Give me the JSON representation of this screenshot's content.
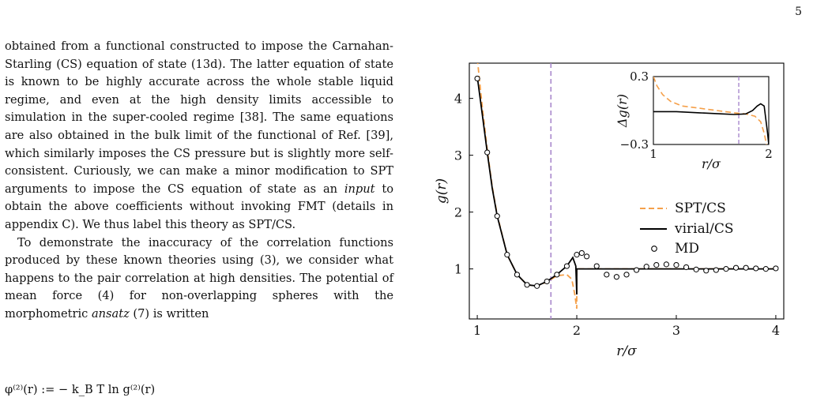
{
  "page_number": "5",
  "paragraph1": {
    "text_before_italic": "obtained from a functional constructed to impose the Carnahan-Starling (CS) equation of state (13d). The latter equation of state is known to be highly accurate across the whole stable liquid regime, and even at the high density limits accessible to simulation in the super-cooled regime [38]. The same equations are also obtained in the bulk limit of the functional of Ref. [39], which similarly imposes the CS pressure but is slightly more self-consistent. Curiously, we can make a minor modification to SPT arguments to impose the CS equation of state as an ",
    "italic": "input",
    "text_after_italic": " to obtain the above coefficients without invoking FMT (details in appendix C). We thus label this theory as SPT/CS."
  },
  "paragraph2": {
    "text_before_italic": "To demonstrate the inaccuracy of the correlation functions produced by these known theories using (3), we consider what happens to the pair correlation at high densities. The potential of mean force (4) for non-overlapping spheres with the morphometric ",
    "italic": "ansatz",
    "text_after_italic": " (7) is written"
  },
  "equation": "φ⁽²⁾(r) := − k_B T ln g⁽²⁾(r)",
  "chart_data": {
    "type": "line",
    "xlabel": "r/σ",
    "ylabel": "g(r)",
    "xlim": [
      0.92,
      4.08
    ],
    "ylim": [
      0.12,
      4.62
    ],
    "xticks": [
      "1",
      "2",
      "3",
      "4"
    ],
    "yticks": [
      "1",
      "2",
      "3",
      "4"
    ],
    "grid": false,
    "legend_position": "center-right",
    "vertical_line_x": 1.74,
    "series": [
      {
        "name": "SPT/CS",
        "style": "dashed",
        "color": "#f5a04a",
        "x": [
          1.0,
          1.05,
          1.1,
          1.15,
          1.2,
          1.3,
          1.4,
          1.5,
          1.6,
          1.7,
          1.8,
          1.9,
          1.95,
          1.98,
          2.0,
          2.0,
          2.1,
          2.5,
          3.0,
          3.5,
          4.0
        ],
        "y": [
          4.7,
          3.85,
          3.1,
          2.45,
          1.95,
          1.25,
          0.9,
          0.72,
          0.7,
          0.77,
          0.88,
          0.9,
          0.82,
          0.55,
          0.3,
          1.0,
          1.0,
          1.0,
          1.0,
          1.0,
          1.0
        ]
      },
      {
        "name": "virial/CS",
        "style": "solid",
        "color": "#000000",
        "x": [
          1.0,
          1.05,
          1.1,
          1.15,
          1.2,
          1.3,
          1.4,
          1.5,
          1.6,
          1.7,
          1.8,
          1.9,
          1.96,
          1.99,
          2.0,
          2.0,
          2.1,
          2.5,
          3.0,
          3.5,
          4.0
        ],
        "y": [
          4.38,
          3.72,
          3.05,
          2.42,
          1.93,
          1.25,
          0.9,
          0.72,
          0.7,
          0.78,
          0.9,
          1.05,
          1.2,
          1.05,
          0.55,
          1.0,
          1.0,
          1.0,
          1.0,
          1.0,
          1.0
        ]
      },
      {
        "name": "MD",
        "style": "markers",
        "color": "#000000",
        "x": [
          1.0,
          1.1,
          1.2,
          1.3,
          1.4,
          1.5,
          1.6,
          1.7,
          1.8,
          1.9,
          2.0,
          2.05,
          2.1,
          2.2,
          2.3,
          2.4,
          2.5,
          2.6,
          2.7,
          2.8,
          2.9,
          3.0,
          3.1,
          3.2,
          3.3,
          3.4,
          3.5,
          3.6,
          3.7,
          3.8,
          3.9,
          4.0
        ],
        "y": [
          4.35,
          3.05,
          1.93,
          1.25,
          0.9,
          0.72,
          0.7,
          0.78,
          0.9,
          1.05,
          1.25,
          1.28,
          1.22,
          1.05,
          0.9,
          0.86,
          0.9,
          0.98,
          1.04,
          1.07,
          1.08,
          1.07,
          1.03,
          0.99,
          0.97,
          0.98,
          1.0,
          1.02,
          1.02,
          1.01,
          1.0,
          1.01
        ]
      }
    ],
    "inset": {
      "xlabel": "r/σ",
      "ylabel": "Δg(r)",
      "xlim": [
        1.0,
        2.0
      ],
      "ylim": [
        -0.3,
        0.3
      ],
      "xticks": [
        "1",
        "2"
      ],
      "yticks": [
        "0.3",
        "−0.3"
      ],
      "vertical_line_x": 1.74,
      "series": [
        {
          "name": "SPT/CS",
          "style": "dashed",
          "color": "#f5a04a",
          "x": [
            1.0,
            1.03,
            1.08,
            1.15,
            1.25,
            1.4,
            1.55,
            1.7,
            1.8,
            1.88,
            1.93,
            1.96,
            1.98
          ],
          "y": [
            0.3,
            0.22,
            0.14,
            0.08,
            0.04,
            0.02,
            0.0,
            -0.02,
            -0.03,
            -0.05,
            -0.1,
            -0.2,
            -0.3
          ]
        },
        {
          "name": "virial/CS",
          "style": "solid",
          "color": "#000000",
          "x": [
            1.0,
            1.2,
            1.4,
            1.6,
            1.7,
            1.8,
            1.86,
            1.9,
            1.93,
            1.96,
            1.99,
            2.0
          ],
          "y": [
            -0.01,
            -0.01,
            -0.02,
            -0.03,
            -0.035,
            -0.03,
            0.0,
            0.04,
            0.06,
            0.04,
            -0.2,
            -0.3
          ]
        }
      ]
    }
  }
}
